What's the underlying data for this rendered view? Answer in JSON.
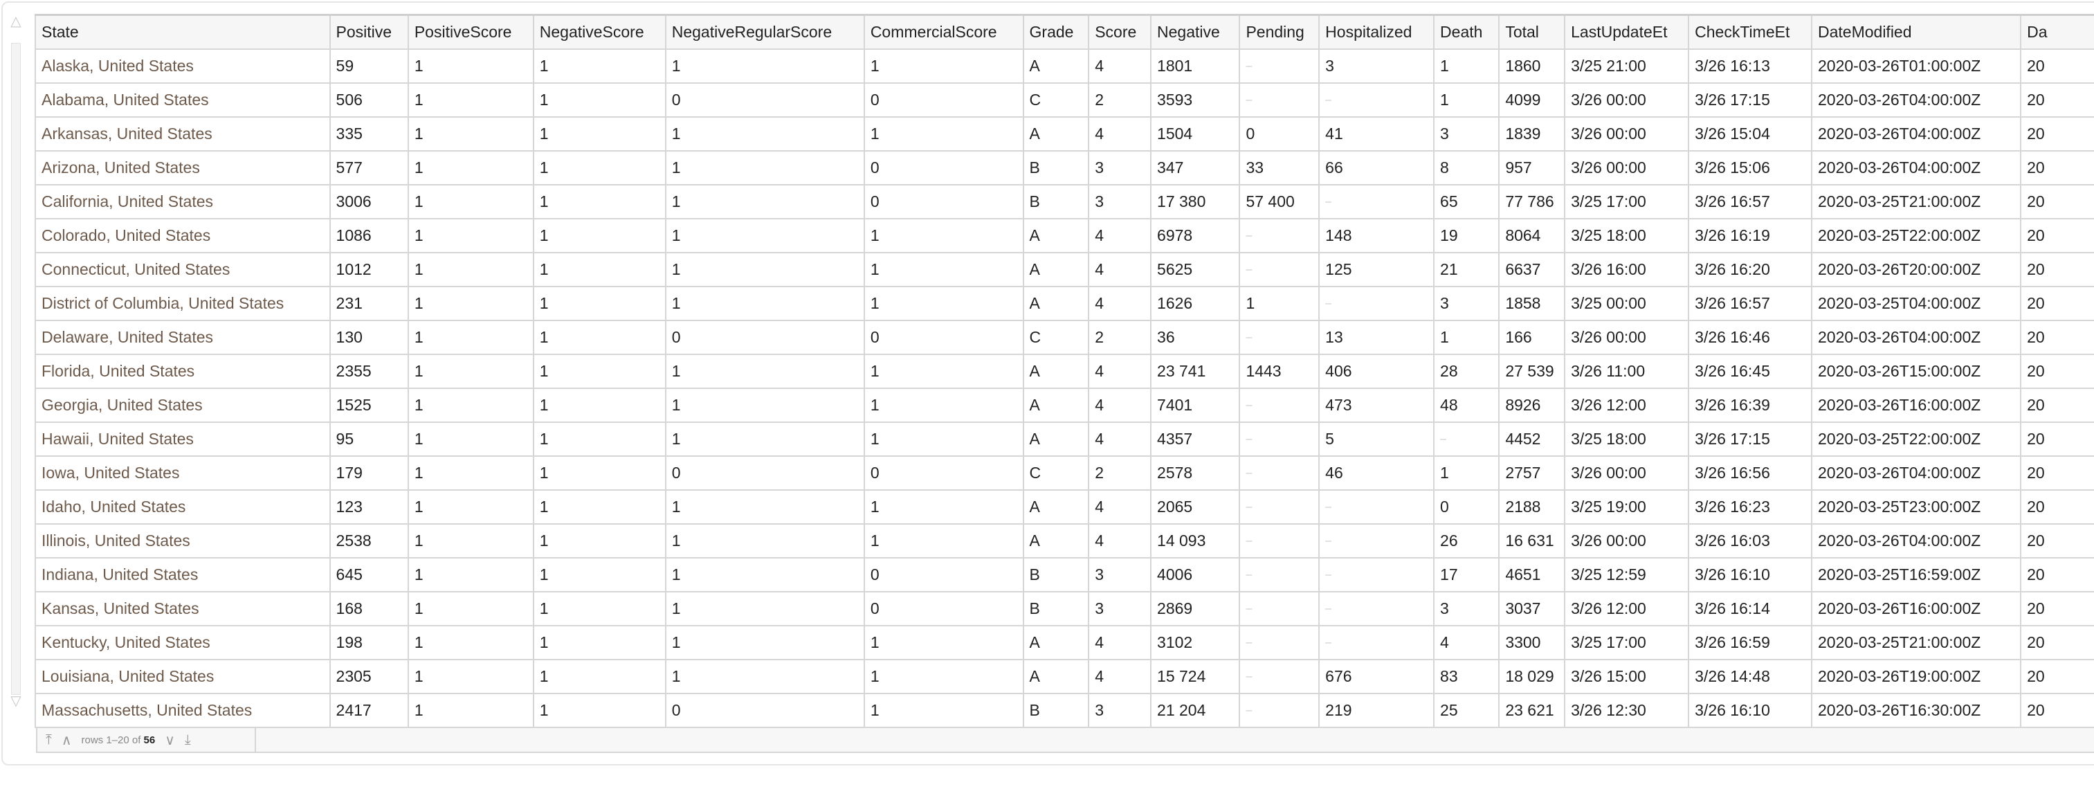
{
  "table": {
    "columns": [
      "State",
      "Positive",
      "PositiveScore",
      "NegativeScore",
      "NegativeRegularScore",
      "CommercialScore",
      "Grade",
      "Score",
      "Negative",
      "Pending",
      "Hospitalized",
      "Death",
      "Total",
      "LastUpdateEt",
      "CheckTimeEt",
      "DateModified",
      "Da"
    ],
    "missing_symbol": "–",
    "rows": [
      [
        "Alaska, United States",
        "59",
        "1",
        "1",
        "1",
        "1",
        "A",
        "4",
        "1801",
        "–",
        "3",
        "1",
        "1860",
        "3/25 21:00",
        "3/26 16:13",
        "2020-03-26T01:00:00Z",
        "20"
      ],
      [
        "Alabama, United States",
        "506",
        "1",
        "1",
        "0",
        "0",
        "C",
        "2",
        "3593",
        "–",
        "–",
        "1",
        "4099",
        "3/26 00:00",
        "3/26 17:15",
        "2020-03-26T04:00:00Z",
        "20"
      ],
      [
        "Arkansas, United States",
        "335",
        "1",
        "1",
        "1",
        "1",
        "A",
        "4",
        "1504",
        "0",
        "41",
        "3",
        "1839",
        "3/26 00:00",
        "3/26 15:04",
        "2020-03-26T04:00:00Z",
        "20"
      ],
      [
        "Arizona, United States",
        "577",
        "1",
        "1",
        "1",
        "0",
        "B",
        "3",
        "347",
        "33",
        "66",
        "8",
        "957",
        "3/26 00:00",
        "3/26 15:06",
        "2020-03-26T04:00:00Z",
        "20"
      ],
      [
        "California, United States",
        "3006",
        "1",
        "1",
        "1",
        "0",
        "B",
        "3",
        "17 380",
        "57 400",
        "–",
        "65",
        "77 786",
        "3/25 17:00",
        "3/26 16:57",
        "2020-03-25T21:00:00Z",
        "20"
      ],
      [
        "Colorado, United States",
        "1086",
        "1",
        "1",
        "1",
        "1",
        "A",
        "4",
        "6978",
        "–",
        "148",
        "19",
        "8064",
        "3/25 18:00",
        "3/26 16:19",
        "2020-03-25T22:00:00Z",
        "20"
      ],
      [
        "Connecticut, United States",
        "1012",
        "1",
        "1",
        "1",
        "1",
        "A",
        "4",
        "5625",
        "–",
        "125",
        "21",
        "6637",
        "3/26 16:00",
        "3/26 16:20",
        "2020-03-26T20:00:00Z",
        "20"
      ],
      [
        "District of Columbia, United States",
        "231",
        "1",
        "1",
        "1",
        "1",
        "A",
        "4",
        "1626",
        "1",
        "–",
        "3",
        "1858",
        "3/25 00:00",
        "3/26 16:57",
        "2020-03-25T04:00:00Z",
        "20"
      ],
      [
        "Delaware, United States",
        "130",
        "1",
        "1",
        "0",
        "0",
        "C",
        "2",
        "36",
        "–",
        "13",
        "1",
        "166",
        "3/26 00:00",
        "3/26 16:46",
        "2020-03-26T04:00:00Z",
        "20"
      ],
      [
        "Florida, United States",
        "2355",
        "1",
        "1",
        "1",
        "1",
        "A",
        "4",
        "23 741",
        "1443",
        "406",
        "28",
        "27 539",
        "3/26 11:00",
        "3/26 16:45",
        "2020-03-26T15:00:00Z",
        "20"
      ],
      [
        "Georgia, United States",
        "1525",
        "1",
        "1",
        "1",
        "1",
        "A",
        "4",
        "7401",
        "–",
        "473",
        "48",
        "8926",
        "3/26 12:00",
        "3/26 16:39",
        "2020-03-26T16:00:00Z",
        "20"
      ],
      [
        "Hawaii, United States",
        "95",
        "1",
        "1",
        "1",
        "1",
        "A",
        "4",
        "4357",
        "–",
        "5",
        "–",
        "4452",
        "3/25 18:00",
        "3/26 17:15",
        "2020-03-25T22:00:00Z",
        "20"
      ],
      [
        "Iowa, United States",
        "179",
        "1",
        "1",
        "0",
        "0",
        "C",
        "2",
        "2578",
        "–",
        "46",
        "1",
        "2757",
        "3/26 00:00",
        "3/26 16:56",
        "2020-03-26T04:00:00Z",
        "20"
      ],
      [
        "Idaho, United States",
        "123",
        "1",
        "1",
        "1",
        "1",
        "A",
        "4",
        "2065",
        "–",
        "–",
        "0",
        "2188",
        "3/25 19:00",
        "3/26 16:23",
        "2020-03-25T23:00:00Z",
        "20"
      ],
      [
        "Illinois, United States",
        "2538",
        "1",
        "1",
        "1",
        "1",
        "A",
        "4",
        "14 093",
        "–",
        "–",
        "26",
        "16 631",
        "3/26 00:00",
        "3/26 16:03",
        "2020-03-26T04:00:00Z",
        "20"
      ],
      [
        "Indiana, United States",
        "645",
        "1",
        "1",
        "1",
        "0",
        "B",
        "3",
        "4006",
        "–",
        "–",
        "17",
        "4651",
        "3/25 12:59",
        "3/26 16:10",
        "2020-03-25T16:59:00Z",
        "20"
      ],
      [
        "Kansas, United States",
        "168",
        "1",
        "1",
        "1",
        "0",
        "B",
        "3",
        "2869",
        "–",
        "–",
        "3",
        "3037",
        "3/26 12:00",
        "3/26 16:14",
        "2020-03-26T16:00:00Z",
        "20"
      ],
      [
        "Kentucky, United States",
        "198",
        "1",
        "1",
        "1",
        "1",
        "A",
        "4",
        "3102",
        "–",
        "–",
        "4",
        "3300",
        "3/25 17:00",
        "3/26 16:59",
        "2020-03-25T21:00:00Z",
        "20"
      ],
      [
        "Louisiana, United States",
        "2305",
        "1",
        "1",
        "1",
        "1",
        "A",
        "4",
        "15 724",
        "–",
        "676",
        "83",
        "18 029",
        "3/26 15:00",
        "3/26 14:48",
        "2020-03-26T19:00:00Z",
        "20"
      ],
      [
        "Massachusetts, United States",
        "2417",
        "1",
        "1",
        "0",
        "1",
        "B",
        "3",
        "21 204",
        "–",
        "219",
        "25",
        "23 621",
        "3/26 12:30",
        "3/26 16:10",
        "2020-03-26T16:30:00Z",
        "20"
      ]
    ]
  },
  "pager": {
    "prefix": "rows 1–20 of",
    "total": "56",
    "first_icon": "first-page-icon",
    "prev_icon": "previous-page-icon",
    "next_icon": "next-page-icon",
    "last_icon": "last-page-icon"
  },
  "colors": {
    "state_text": "#6e5a4b",
    "grid_border": "#d6d6d6",
    "missing": "#c9c9c9"
  }
}
